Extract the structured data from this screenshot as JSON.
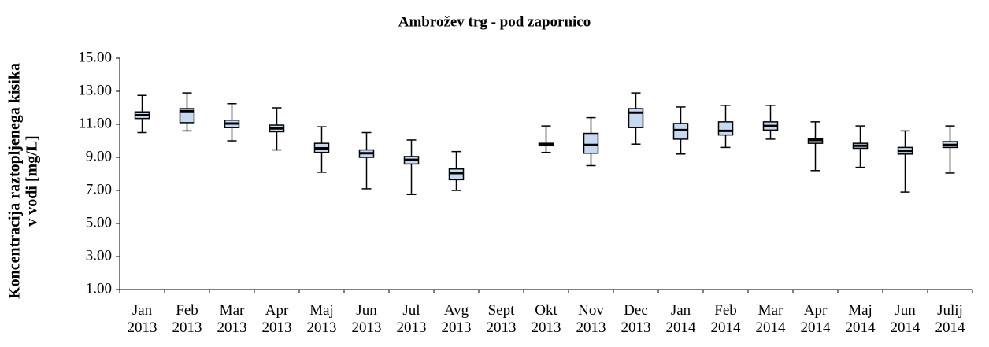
{
  "chart_data": {
    "type": "box",
    "title": "Ambrožev  trg - pod zapornico",
    "ylabel": [
      "Koncentracija  raztopljenega  kisika",
      "v vodi  [mg/L]"
    ],
    "categories": [
      "Jan 2013",
      "Feb 2013",
      "Mar 2013",
      "Apr 2013",
      "Maj 2013",
      "Jun 2013",
      "Jul 2013",
      "Avg 2013",
      "Sept 2013",
      "Okt 2013",
      "Nov 2013",
      "Dec 2013",
      "Jan 2014",
      "Feb 2014",
      "Mar 2014",
      "Apr 2014",
      "Maj 2014",
      "Jun 2014",
      "Julij 2014"
    ],
    "boxes": [
      {
        "min": 10.5,
        "q1": 11.35,
        "median": 11.55,
        "q3": 11.75,
        "max": 12.75
      },
      {
        "min": 10.6,
        "q1": 11.1,
        "median": 11.8,
        "q3": 11.95,
        "max": 12.9
      },
      {
        "min": 10.0,
        "q1": 10.8,
        "median": 11.05,
        "q3": 11.25,
        "max": 12.25
      },
      {
        "min": 9.45,
        "q1": 10.55,
        "median": 10.75,
        "q3": 10.95,
        "max": 12.0
      },
      {
        "min": 8.1,
        "q1": 9.3,
        "median": 9.55,
        "q3": 9.85,
        "max": 10.85
      },
      {
        "min": 7.1,
        "q1": 9.0,
        "median": 9.25,
        "q3": 9.45,
        "max": 10.5
      },
      {
        "min": 6.75,
        "q1": 8.6,
        "median": 8.85,
        "q3": 9.05,
        "max": 10.05
      },
      {
        "min": 7.0,
        "q1": 7.65,
        "median": 8.05,
        "q3": 8.3,
        "max": 9.35
      },
      null,
      {
        "min": 9.3,
        "q1": 9.7,
        "median": 9.8,
        "q3": 9.85,
        "max": 10.9
      },
      {
        "min": 8.5,
        "q1": 9.25,
        "median": 9.75,
        "q3": 10.45,
        "max": 11.4
      },
      {
        "min": 9.8,
        "q1": 10.8,
        "median": 11.7,
        "q3": 11.95,
        "max": 12.9
      },
      {
        "min": 9.2,
        "q1": 10.1,
        "median": 10.65,
        "q3": 11.05,
        "max": 12.05
      },
      {
        "min": 9.6,
        "q1": 10.35,
        "median": 10.6,
        "q3": 11.15,
        "max": 12.15
      },
      {
        "min": 10.1,
        "q1": 10.65,
        "median": 10.9,
        "q3": 11.15,
        "max": 12.15
      },
      {
        "min": 8.2,
        "q1": 9.85,
        "median": 10.05,
        "q3": 10.15,
        "max": 11.15
      },
      {
        "min": 8.4,
        "q1": 9.55,
        "median": 9.7,
        "q3": 9.85,
        "max": 10.9
      },
      {
        "min": 6.9,
        "q1": 9.2,
        "median": 9.4,
        "q3": 9.6,
        "max": 10.6
      },
      {
        "min": 8.05,
        "q1": 9.6,
        "median": 9.75,
        "q3": 9.95,
        "max": 10.9
      }
    ],
    "color": "#c6d9f1",
    "ylim": [
      1,
      15
    ],
    "yticks": [
      {
        "value": 1,
        "label": "1.00"
      },
      {
        "value": 3,
        "label": "3.00"
      },
      {
        "value": 5,
        "label": "5.00"
      },
      {
        "value": 7,
        "label": "7.00"
      },
      {
        "value": 9,
        "label": "9.00"
      },
      {
        "value": 11,
        "label": "11.00"
      },
      {
        "value": 13,
        "label": "13.00"
      },
      {
        "value": 15,
        "label": "15.00"
      }
    ]
  }
}
